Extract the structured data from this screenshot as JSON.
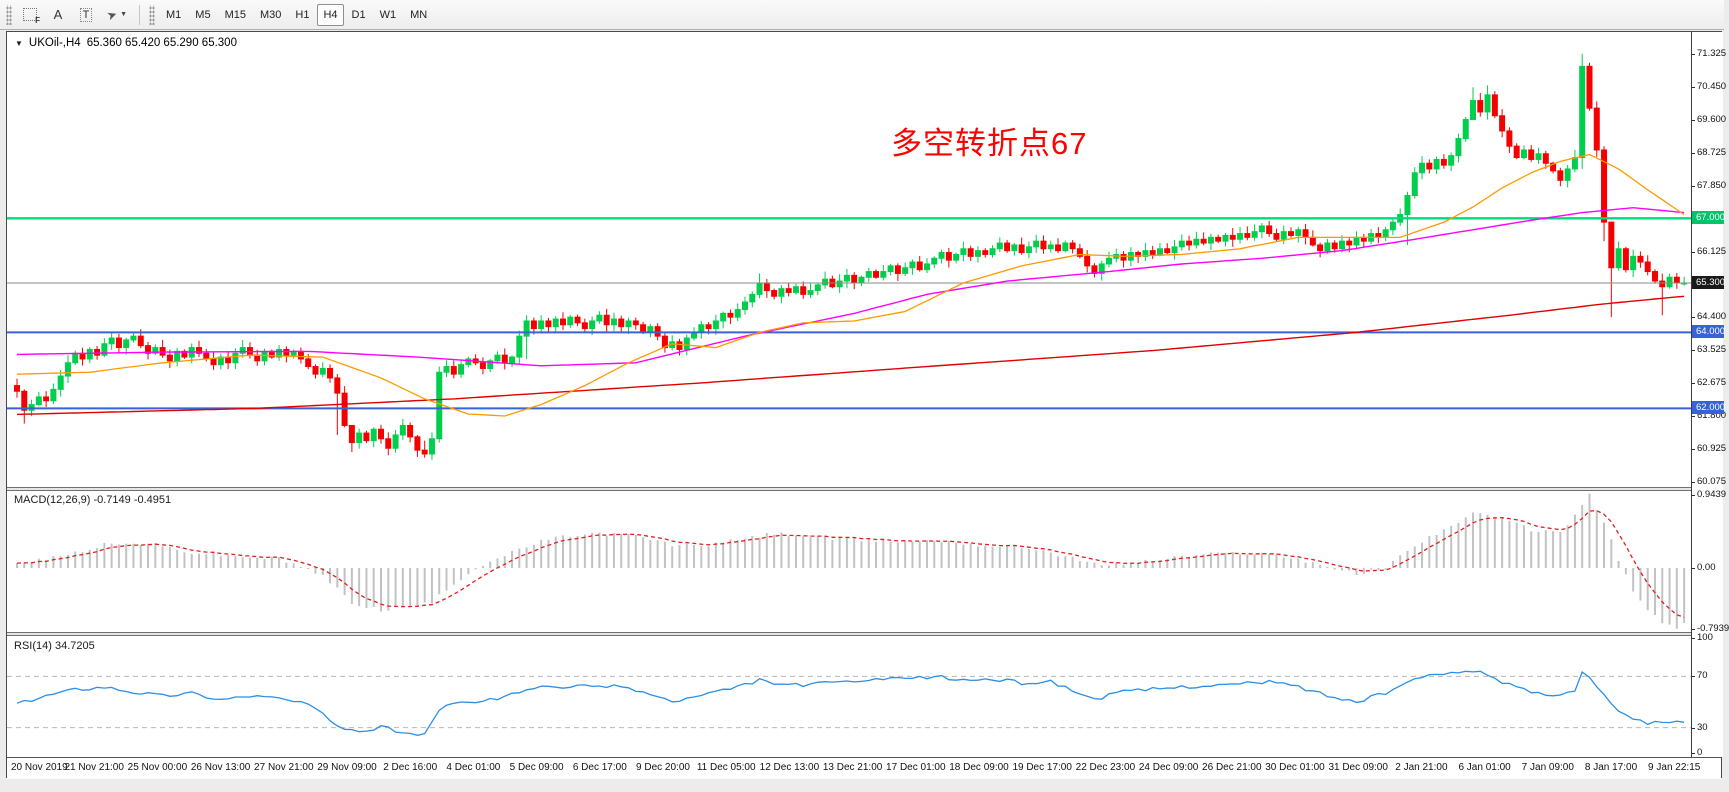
{
  "toolbar": {
    "icons": {
      "grid_tool_sub": "F",
      "text_label_tool": "A",
      "text_box_tool": "T",
      "draw_tool_glyph": "➤",
      "caret": "▼"
    },
    "timeframes": [
      "M1",
      "M5",
      "M15",
      "M30",
      "H1",
      "H4",
      "D1",
      "W1",
      "MN"
    ],
    "active_timeframe": "H4"
  },
  "chart": {
    "title": {
      "symbol": "UKOil-,H4",
      "ohlc": "65.360 65.420 65.290 65.300",
      "dropdown_glyph": "▼"
    },
    "annotation": {
      "text": "多空转折点67",
      "color": "#fe0000"
    },
    "macd_label": "MACD(12,26,9) -0.7149 -0.4951",
    "rsi_label": "RSI(14) 34.7205",
    "price_axis": {
      "ticks": [
        "71.325",
        "70.450",
        "69.600",
        "68.725",
        "67.850",
        "66.125",
        "64.400",
        "63.525",
        "62.675",
        "61.800",
        "60.925",
        "60.075"
      ],
      "badges": [
        {
          "label": "67.000",
          "price": 67.0,
          "bg": "#00c36a",
          "line": "#00d97e",
          "width": 2.4
        },
        {
          "label": "65.300",
          "price": 65.3,
          "bg": "#1a1a1a",
          "line": "#8a8a8a",
          "width": 1
        },
        {
          "label": "64.000",
          "price": 64.0,
          "bg": "#3a62d8",
          "line": "#3a62d8",
          "width": 2
        },
        {
          "label": "62.000",
          "price": 62.0,
          "bg": "#3a62d8",
          "line": "#3a62d8",
          "width": 2
        }
      ]
    },
    "x_axis": {
      "labels": [
        "20 Nov 2019",
        "21 Nov 21:00",
        "25 Nov 00:00",
        "26 Nov 13:00",
        "27 Nov 21:00",
        "29 Nov 09:00",
        "2 Dec 16:00",
        "4 Dec 01:00",
        "5 Dec 09:00",
        "6 Dec 17:00",
        "9 Dec 20:00",
        "11 Dec 05:00",
        "12 Dec 13:00",
        "13 Dec 21:00",
        "17 Dec 01:00",
        "18 Dec 09:00",
        "19 Dec 17:00",
        "22 Dec 23:00",
        "24 Dec 09:00",
        "26 Dec 21:00",
        "30 Dec 01:00",
        "31 Dec 09:00",
        "2 Jan 21:00",
        "6 Jan 01:00",
        "7 Jan 09:00",
        "8 Jan 17:00",
        "9 Jan 22:15"
      ]
    },
    "colors": {
      "bull": "#00cf4e",
      "bear": "#f50000",
      "ma_fast": "#ff9900",
      "ma_mid": "#ff00ff",
      "ma_slow": "#e00000",
      "macd_hist": "#c2c2c2",
      "macd_signal": "#e02020",
      "rsi_line": "#2a8fe8",
      "rsi_level": "#b8b8b8"
    }
  },
  "chart_data": {
    "type": "candlestick",
    "symbol": "UKOil-",
    "timeframe": "H4",
    "last_ohlc": {
      "open": 65.36,
      "high": 65.42,
      "low": 65.29,
      "close": 65.3
    },
    "price_range_view": [
      59.95,
      71.8
    ],
    "closes": [
      62.45,
      61.95,
      62.1,
      62.3,
      62.2,
      62.5,
      62.85,
      63.2,
      63.45,
      63.3,
      63.55,
      63.4,
      63.7,
      63.85,
      63.6,
      63.8,
      63.9,
      63.65,
      63.45,
      63.6,
      63.4,
      63.25,
      63.5,
      63.35,
      63.6,
      63.45,
      63.3,
      63.15,
      63.35,
      63.2,
      63.45,
      63.6,
      63.4,
      63.25,
      63.5,
      63.35,
      63.55,
      63.4,
      63.5,
      63.3,
      63.1,
      62.9,
      63.05,
      62.8,
      62.4,
      61.55,
      61.1,
      61.35,
      61.15,
      61.45,
      61.2,
      60.95,
      61.3,
      61.55,
      61.25,
      60.9,
      60.8,
      61.2,
      62.95,
      63.1,
      62.9,
      63.15,
      63.3,
      63.2,
      63.05,
      63.25,
      63.4,
      63.2,
      63.35,
      63.9,
      64.3,
      64.1,
      64.3,
      64.15,
      64.35,
      64.2,
      64.4,
      64.25,
      64.1,
      64.3,
      64.45,
      64.2,
      64.35,
      64.15,
      64.3,
      64.2,
      64.0,
      64.15,
      63.9,
      63.6,
      63.75,
      63.55,
      63.85,
      64.0,
      64.2,
      64.1,
      64.3,
      64.5,
      64.4,
      64.6,
      64.8,
      65.0,
      65.3,
      65.1,
      64.95,
      65.15,
      65.05,
      65.2,
      65.0,
      65.1,
      65.25,
      65.4,
      65.2,
      65.35,
      65.5,
      65.3,
      65.45,
      65.6,
      65.45,
      65.6,
      65.75,
      65.55,
      65.7,
      65.85,
      65.65,
      65.8,
      65.95,
      66.1,
      65.9,
      66.05,
      66.2,
      66.0,
      66.15,
      66.05,
      66.2,
      66.35,
      66.15,
      66.3,
      66.1,
      66.25,
      66.4,
      66.2,
      66.3,
      66.15,
      66.35,
      66.2,
      66.0,
      65.75,
      65.55,
      65.8,
      65.95,
      66.05,
      65.9,
      66.1,
      66.0,
      66.15,
      66.05,
      66.2,
      66.1,
      66.25,
      66.4,
      66.3,
      66.45,
      66.35,
      66.5,
      66.4,
      66.55,
      66.45,
      66.6,
      66.5,
      66.65,
      66.8,
      66.6,
      66.45,
      66.65,
      66.55,
      66.7,
      66.5,
      66.3,
      66.15,
      66.35,
      66.2,
      66.4,
      66.3,
      66.5,
      66.4,
      66.6,
      66.5,
      66.7,
      66.9,
      67.1,
      67.6,
      68.2,
      68.45,
      68.3,
      68.55,
      68.4,
      68.65,
      69.1,
      69.6,
      70.1,
      69.8,
      70.25,
      69.7,
      69.3,
      68.9,
      68.6,
      68.8,
      68.55,
      68.7,
      68.45,
      68.25,
      68.0,
      68.3,
      68.6,
      71.0,
      69.9,
      68.8,
      66.9,
      65.7,
      66.2,
      65.65,
      66.0,
      65.85,
      65.6,
      65.35,
      65.2,
      65.45,
      65.3,
      65.3
    ],
    "wick_overrides": {
      "1": [
        62.5,
        61.6
      ],
      "44": [
        62.9,
        61.3
      ],
      "46": [
        61.4,
        60.85
      ],
      "55": [
        61.3,
        60.72
      ],
      "56": [
        61.15,
        60.7
      ],
      "58": [
        63.1,
        61.1
      ],
      "70": [
        64.45,
        63.3
      ],
      "102": [
        65.55,
        64.9
      ],
      "191": [
        67.7,
        66.3
      ],
      "200": [
        70.45,
        69.7
      ],
      "202": [
        70.5,
        69.6
      ],
      "215": [
        71.33,
        68.3
      ],
      "218": [
        68.9,
        66.4
      ],
      "219": [
        66.1,
        64.4
      ],
      "226": [
        65.55,
        64.45
      ]
    },
    "ma_lines": {
      "slow_red": [
        [
          0,
          61.84
        ],
        [
          33,
          62.0
        ],
        [
          60,
          62.25
        ],
        [
          94,
          62.67
        ],
        [
          125,
          63.1
        ],
        [
          156,
          63.52
        ],
        [
          184,
          64.0
        ],
        [
          205,
          64.45
        ],
        [
          218,
          64.75
        ],
        [
          229,
          64.95
        ]
      ],
      "mid_magenta": [
        [
          0,
          63.42
        ],
        [
          20,
          63.48
        ],
        [
          40,
          63.5
        ],
        [
          55,
          63.35
        ],
        [
          72,
          63.12
        ],
        [
          85,
          63.2
        ],
        [
          100,
          63.9
        ],
        [
          115,
          64.5
        ],
        [
          125,
          65.0
        ],
        [
          136,
          65.35
        ],
        [
          150,
          65.6
        ],
        [
          160,
          65.8
        ],
        [
          171,
          65.95
        ],
        [
          182,
          66.15
        ],
        [
          192,
          66.45
        ],
        [
          200,
          66.7
        ],
        [
          208,
          66.95
        ],
        [
          215,
          67.15
        ],
        [
          222,
          67.28
        ],
        [
          229,
          67.15
        ]
      ],
      "fast_orange": [
        [
          0,
          62.9
        ],
        [
          10,
          62.95
        ],
        [
          20,
          63.2
        ],
        [
          32,
          63.4
        ],
        [
          42,
          63.35
        ],
        [
          50,
          62.8
        ],
        [
          56,
          62.25
        ],
        [
          62,
          61.85
        ],
        [
          67,
          61.8
        ],
        [
          72,
          62.1
        ],
        [
          78,
          62.6
        ],
        [
          84,
          63.2
        ],
        [
          90,
          63.7
        ],
        [
          96,
          63.6
        ],
        [
          102,
          64.0
        ],
        [
          108,
          64.25
        ],
        [
          115,
          64.3
        ],
        [
          122,
          64.55
        ],
        [
          130,
          65.3
        ],
        [
          138,
          65.75
        ],
        [
          146,
          66.05
        ],
        [
          152,
          66.0
        ],
        [
          160,
          66.05
        ],
        [
          168,
          66.2
        ],
        [
          176,
          66.5
        ],
        [
          184,
          66.5
        ],
        [
          190,
          66.5
        ],
        [
          196,
          66.9
        ],
        [
          200,
          67.3
        ],
        [
          204,
          67.8
        ],
        [
          208,
          68.2
        ],
        [
          212,
          68.5
        ],
        [
          216,
          68.68
        ],
        [
          220,
          68.3
        ],
        [
          224,
          67.75
        ],
        [
          229,
          67.1
        ]
      ]
    },
    "macd": {
      "params": "12,26,9",
      "main_value": -0.7149,
      "signal_value": -0.4951,
      "axis_labels": [
        "0.9439",
        "0.00",
        "-0.7939"
      ],
      "main_anchors": [
        [
          0,
          0.05
        ],
        [
          6,
          0.15
        ],
        [
          12,
          0.3
        ],
        [
          18,
          0.32
        ],
        [
          24,
          0.2
        ],
        [
          30,
          0.15
        ],
        [
          36,
          0.12
        ],
        [
          42,
          -0.1
        ],
        [
          46,
          -0.45
        ],
        [
          50,
          -0.55
        ],
        [
          54,
          -0.5
        ],
        [
          57,
          -0.45
        ],
        [
          60,
          -0.2
        ],
        [
          64,
          0.05
        ],
        [
          68,
          0.2
        ],
        [
          72,
          0.35
        ],
        [
          76,
          0.42
        ],
        [
          80,
          0.45
        ],
        [
          85,
          0.42
        ],
        [
          90,
          0.3
        ],
        [
          95,
          0.3
        ],
        [
          100,
          0.38
        ],
        [
          104,
          0.45
        ],
        [
          108,
          0.42
        ],
        [
          112,
          0.38
        ],
        [
          120,
          0.35
        ],
        [
          128,
          0.35
        ],
        [
          132,
          0.3
        ],
        [
          136,
          0.28
        ],
        [
          140,
          0.25
        ],
        [
          144,
          0.15
        ],
        [
          148,
          0.05
        ],
        [
          152,
          0.05
        ],
        [
          156,
          0.1
        ],
        [
          160,
          0.15
        ],
        [
          164,
          0.18
        ],
        [
          168,
          0.2
        ],
        [
          172,
          0.18
        ],
        [
          176,
          0.12
        ],
        [
          180,
          0.02
        ],
        [
          184,
          -0.08
        ],
        [
          188,
          0.0
        ],
        [
          192,
          0.3
        ],
        [
          196,
          0.5
        ],
        [
          200,
          0.7
        ],
        [
          204,
          0.65
        ],
        [
          208,
          0.5
        ],
        [
          212,
          0.45
        ],
        [
          214,
          0.7
        ],
        [
          216,
          0.9439
        ],
        [
          218,
          0.6
        ],
        [
          220,
          0.1
        ],
        [
          222,
          -0.3
        ],
        [
          224,
          -0.55
        ],
        [
          226,
          -0.7
        ],
        [
          228,
          -0.79
        ],
        [
          229,
          -0.7149
        ]
      ]
    },
    "rsi": {
      "period": 14,
      "value": 34.7205,
      "axis_labels": [
        "100",
        "70",
        "30",
        "0"
      ],
      "levels": [
        70,
        30
      ],
      "anchors": [
        [
          0,
          48
        ],
        [
          4,
          55
        ],
        [
          8,
          60
        ],
        [
          12,
          62
        ],
        [
          16,
          58
        ],
        [
          20,
          55
        ],
        [
          24,
          57
        ],
        [
          28,
          52
        ],
        [
          32,
          55
        ],
        [
          36,
          53
        ],
        [
          40,
          48
        ],
        [
          44,
          32
        ],
        [
          46,
          27
        ],
        [
          50,
          30
        ],
        [
          54,
          26
        ],
        [
          56,
          24
        ],
        [
          58,
          45
        ],
        [
          62,
          50
        ],
        [
          66,
          52
        ],
        [
          70,
          60
        ],
        [
          74,
          62
        ],
        [
          78,
          62
        ],
        [
          82,
          63
        ],
        [
          86,
          58
        ],
        [
          90,
          50
        ],
        [
          94,
          55
        ],
        [
          98,
          60
        ],
        [
          102,
          67
        ],
        [
          106,
          63
        ],
        [
          110,
          64
        ],
        [
          114,
          66
        ],
        [
          118,
          67
        ],
        [
          122,
          68
        ],
        [
          126,
          70
        ],
        [
          130,
          67
        ],
        [
          134,
          68
        ],
        [
          138,
          65
        ],
        [
          142,
          66
        ],
        [
          146,
          57
        ],
        [
          148,
          52
        ],
        [
          152,
          58
        ],
        [
          156,
          60
        ],
        [
          160,
          62
        ],
        [
          164,
          63
        ],
        [
          168,
          64
        ],
        [
          172,
          66
        ],
        [
          176,
          62
        ],
        [
          180,
          55
        ],
        [
          184,
          50
        ],
        [
          188,
          57
        ],
        [
          192,
          68
        ],
        [
          196,
          72
        ],
        [
          200,
          75
        ],
        [
          202,
          72
        ],
        [
          204,
          65
        ],
        [
          208,
          58
        ],
        [
          211,
          55
        ],
        [
          214,
          60
        ],
        [
          215,
          74
        ],
        [
          216,
          70
        ],
        [
          218,
          55
        ],
        [
          220,
          42
        ],
        [
          222,
          36
        ],
        [
          224,
          34
        ],
        [
          226,
          33
        ],
        [
          228,
          34
        ],
        [
          229,
          34.72
        ]
      ]
    }
  }
}
